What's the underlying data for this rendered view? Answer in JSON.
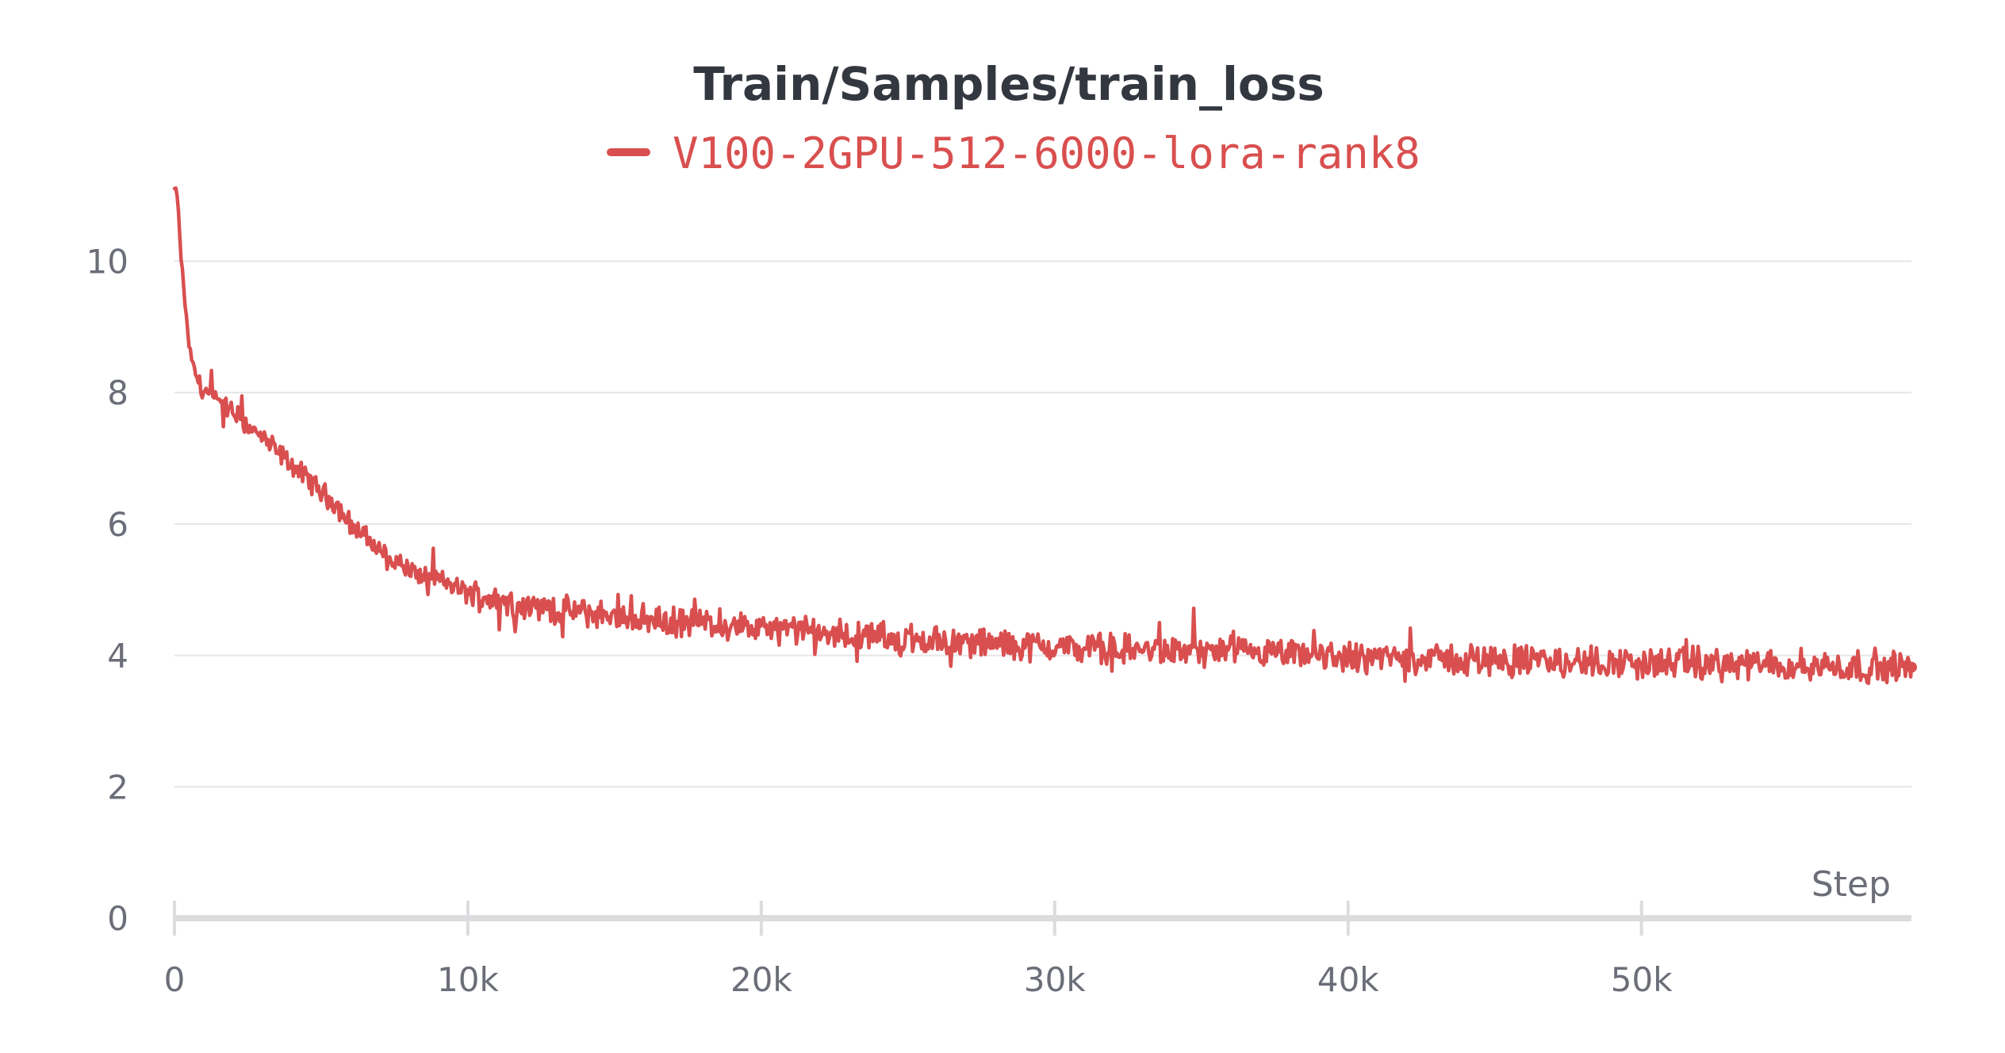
{
  "chart_data": {
    "type": "line",
    "title": "Train/Samples/train_loss",
    "xlabel": "Step",
    "ylabel": "",
    "xlim": [
      0,
      59200
    ],
    "ylim": [
      0,
      11.2
    ],
    "x_ticks": [
      {
        "value": 0,
        "label": "0"
      },
      {
        "value": 10000,
        "label": "10k"
      },
      {
        "value": 20000,
        "label": "20k"
      },
      {
        "value": 30000,
        "label": "30k"
      },
      {
        "value": 40000,
        "label": "40k"
      },
      {
        "value": 50000,
        "label": "50k"
      }
    ],
    "y_ticks": [
      {
        "value": 0,
        "label": "0"
      },
      {
        "value": 2,
        "label": "2"
      },
      {
        "value": 4,
        "label": "4"
      },
      {
        "value": 6,
        "label": "6"
      },
      {
        "value": 8,
        "label": "8"
      },
      {
        "value": 10,
        "label": "10"
      }
    ],
    "grid": "horizontal",
    "legend_position": "top-center",
    "series": [
      {
        "name": "V100-2GPU-512-6000-lora-rank8",
        "color": "#d94f4f",
        "x": [
          0,
          100,
          200,
          350,
          500,
          700,
          900,
          1200,
          1500,
          2000,
          2500,
          3000,
          3500,
          4000,
          4500,
          5000,
          5500,
          6000,
          6500,
          7000,
          7500,
          8000,
          8500,
          9000,
          9500,
          10000,
          11000,
          12000,
          13000,
          14000,
          15000,
          16000,
          17000,
          18000,
          19000,
          20000,
          21000,
          22000,
          23000,
          24000,
          25000,
          26000,
          27000,
          28000,
          29000,
          30000,
          31000,
          32000,
          33000,
          34000,
          35000,
          36000,
          37000,
          38000,
          39000,
          40000,
          41000,
          42000,
          43000,
          44000,
          45000,
          46000,
          47000,
          48000,
          49000,
          50000,
          51000,
          52000,
          53000,
          54000,
          55000,
          56000,
          57000,
          58000,
          59200
        ],
        "y": [
          11.1,
          11.0,
          10.2,
          9.4,
          8.7,
          8.3,
          8.1,
          7.95,
          7.85,
          7.7,
          7.5,
          7.3,
          7.1,
          6.9,
          6.7,
          6.5,
          6.3,
          6.0,
          5.8,
          5.6,
          5.45,
          5.3,
          5.2,
          5.15,
          5.05,
          4.95,
          4.85,
          4.75,
          4.7,
          4.65,
          4.6,
          4.55,
          4.5,
          4.5,
          4.45,
          4.4,
          4.38,
          4.35,
          4.3,
          4.28,
          4.25,
          4.22,
          4.2,
          4.18,
          4.15,
          4.13,
          4.12,
          4.1,
          4.08,
          4.06,
          4.05,
          4.04,
          4.02,
          4.0,
          3.99,
          3.98,
          3.97,
          3.96,
          3.95,
          3.94,
          3.93,
          3.92,
          3.91,
          3.9,
          3.89,
          3.88,
          3.88,
          3.87,
          3.86,
          3.85,
          3.85,
          3.84,
          3.84,
          3.83,
          3.82
        ]
      }
    ]
  }
}
